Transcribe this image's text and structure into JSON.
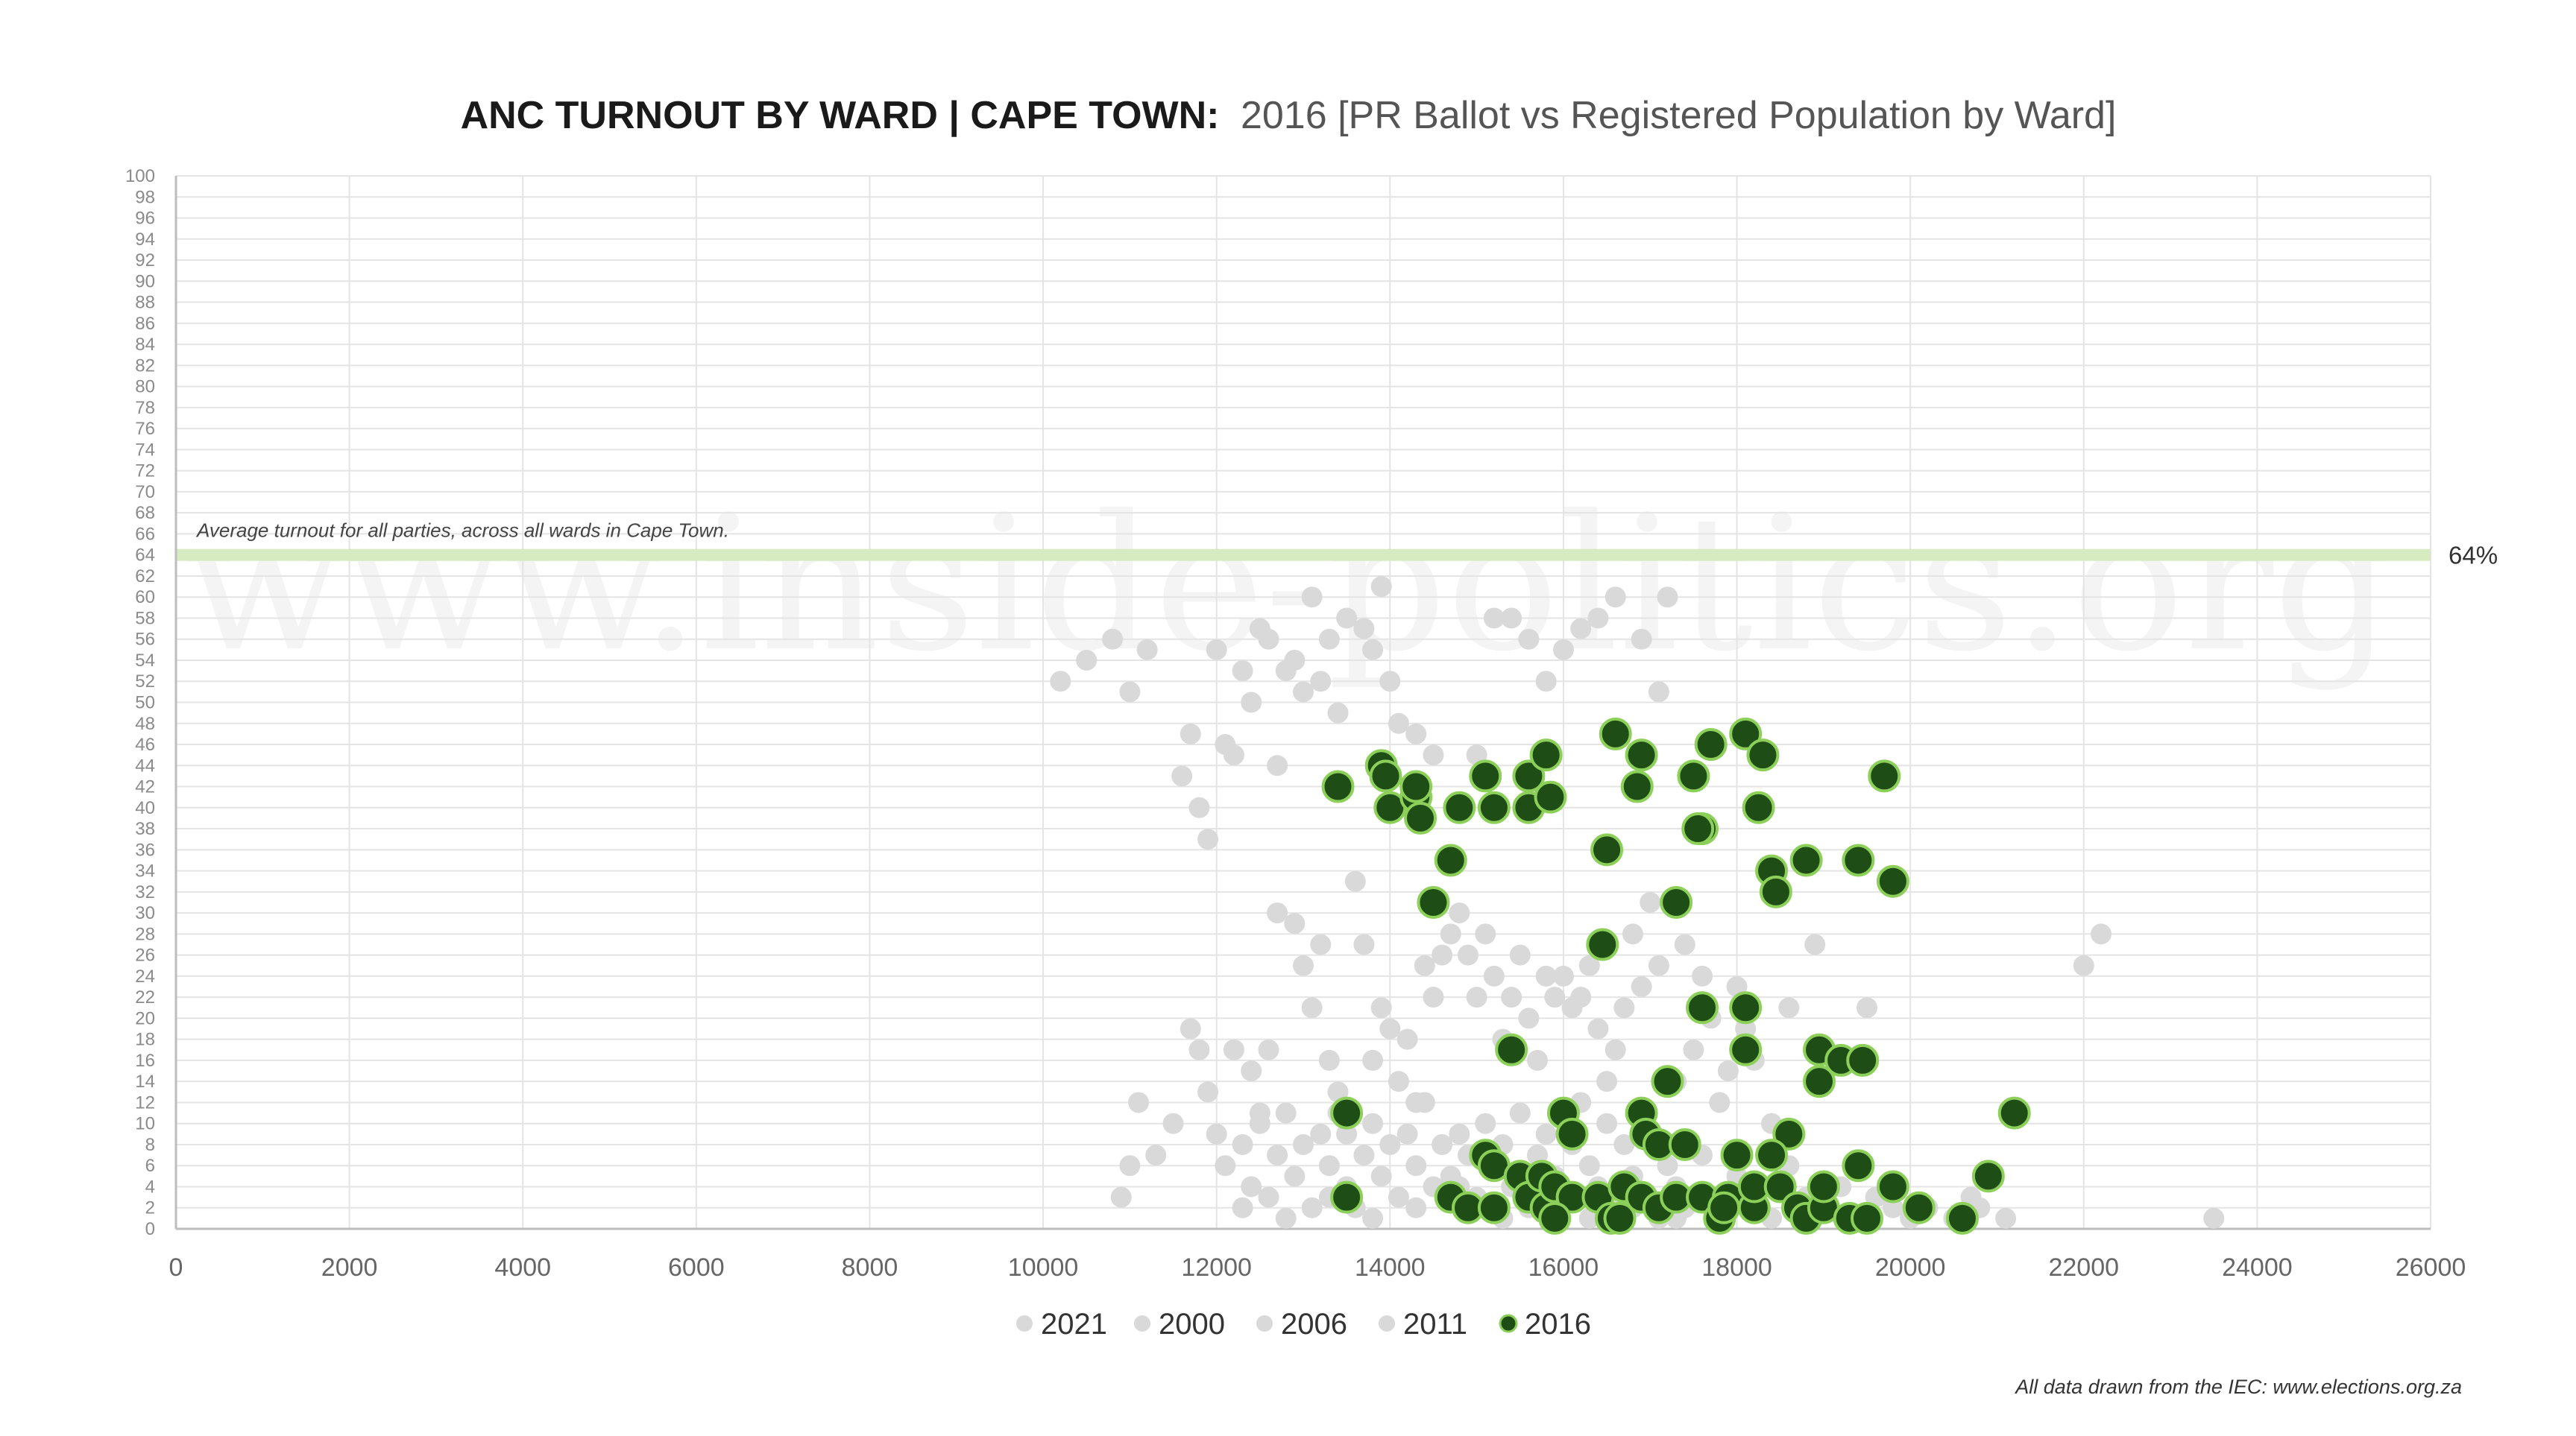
{
  "title": {
    "bold": "ANC TURNOUT BY WARD | CAPE TOWN:",
    "light": "2016 [PR Ballot vs Registered Population by Ward]"
  },
  "watermark": "www.inside-politics.org",
  "source_note": "All data drawn from the IEC: www.elections.org.za",
  "colors": {
    "grid": "#e4e4e4",
    "axis": "#bdbdbd",
    "background_series": "#d9d9d9",
    "highlight_fill": "#1f4d16",
    "highlight_stroke": "#8cd05a",
    "average_band": "#d6ecc0"
  },
  "chart_data": {
    "type": "scatter",
    "xlim": [
      0,
      26000
    ],
    "ylim": [
      0,
      100
    ],
    "x_ticks": [
      "0",
      "2000",
      "4000",
      "6000",
      "8000",
      "10000",
      "12000",
      "14000",
      "16000",
      "18000",
      "20000",
      "22000",
      "24000",
      "26000"
    ],
    "y_ticks": [
      "0",
      "2",
      "4",
      "6",
      "8",
      "10",
      "12",
      "14",
      "16",
      "18",
      "20",
      "22",
      "24",
      "26",
      "28",
      "30",
      "32",
      "34",
      "36",
      "38",
      "40",
      "42",
      "44",
      "46",
      "48",
      "50",
      "52",
      "54",
      "56",
      "58",
      "60",
      "62",
      "64",
      "66",
      "68",
      "70",
      "72",
      "74",
      "76",
      "78",
      "80",
      "82",
      "84",
      "86",
      "88",
      "90",
      "92",
      "94",
      "96",
      "98",
      "100"
    ],
    "reference_line": {
      "y": 64,
      "value_label": "64%",
      "annotation": "Average turnout for all parties, across all wards in Cape Town."
    },
    "legend": [
      "2021",
      "2000",
      "2006",
      "2011",
      "2016"
    ],
    "series": [
      {
        "name": "background",
        "points": [
          [
            10200,
            52
          ],
          [
            10500,
            54
          ],
          [
            10800,
            56
          ],
          [
            11000,
            51
          ],
          [
            11200,
            55
          ],
          [
            10900,
            3
          ],
          [
            11000,
            6
          ],
          [
            11100,
            12
          ],
          [
            11300,
            7
          ],
          [
            11500,
            10
          ],
          [
            11600,
            43
          ],
          [
            11700,
            47
          ],
          [
            11800,
            40
          ],
          [
            11900,
            37
          ],
          [
            12000,
            55
          ],
          [
            12100,
            46
          ],
          [
            12200,
            45
          ],
          [
            12300,
            53
          ],
          [
            12400,
            50
          ],
          [
            12500,
            57
          ],
          [
            12600,
            56
          ],
          [
            12700,
            44
          ],
          [
            12800,
            53
          ],
          [
            12900,
            54
          ],
          [
            13000,
            51
          ],
          [
            13100,
            60
          ],
          [
            13200,
            52
          ],
          [
            13300,
            56
          ],
          [
            13400,
            49
          ],
          [
            13500,
            58
          ],
          [
            13700,
            57
          ],
          [
            13800,
            55
          ],
          [
            13900,
            61
          ],
          [
            14000,
            52
          ],
          [
            14100,
            48
          ],
          [
            14300,
            47
          ],
          [
            14500,
            45
          ],
          [
            15000,
            45
          ],
          [
            15200,
            58
          ],
          [
            15400,
            58
          ],
          [
            15600,
            56
          ],
          [
            15800,
            52
          ],
          [
            16000,
            55
          ],
          [
            16200,
            57
          ],
          [
            16400,
            58
          ],
          [
            16600,
            60
          ],
          [
            16900,
            56
          ],
          [
            17100,
            51
          ],
          [
            17200,
            60
          ],
          [
            11700,
            19
          ],
          [
            11800,
            17
          ],
          [
            11900,
            13
          ],
          [
            12200,
            17
          ],
          [
            12400,
            15
          ],
          [
            12500,
            11
          ],
          [
            12600,
            17
          ],
          [
            12700,
            30
          ],
          [
            12900,
            29
          ],
          [
            13000,
            25
          ],
          [
            13100,
            21
          ],
          [
            13200,
            27
          ],
          [
            13300,
            16
          ],
          [
            13400,
            13
          ],
          [
            13500,
            9
          ],
          [
            13600,
            33
          ],
          [
            13700,
            27
          ],
          [
            13800,
            16
          ],
          [
            13900,
            21
          ],
          [
            14000,
            19
          ],
          [
            14100,
            14
          ],
          [
            14200,
            18
          ],
          [
            14300,
            12
          ],
          [
            14400,
            25
          ],
          [
            14500,
            22
          ],
          [
            14600,
            26
          ],
          [
            14700,
            28
          ],
          [
            14800,
            30
          ],
          [
            14900,
            26
          ],
          [
            15000,
            22
          ],
          [
            15100,
            28
          ],
          [
            15200,
            24
          ],
          [
            15300,
            18
          ],
          [
            15400,
            22
          ],
          [
            15500,
            26
          ],
          [
            15600,
            20
          ],
          [
            15700,
            16
          ],
          [
            15800,
            24
          ],
          [
            15900,
            22
          ],
          [
            16000,
            24
          ],
          [
            16100,
            21
          ],
          [
            16200,
            22
          ],
          [
            16300,
            25
          ],
          [
            16400,
            19
          ],
          [
            16500,
            14
          ],
          [
            16600,
            17
          ],
          [
            16700,
            21
          ],
          [
            16800,
            28
          ],
          [
            16900,
            23
          ],
          [
            17000,
            31
          ],
          [
            17100,
            25
          ],
          [
            17300,
            14
          ],
          [
            17400,
            27
          ],
          [
            17500,
            17
          ],
          [
            17600,
            24
          ],
          [
            17700,
            20
          ],
          [
            17800,
            12
          ],
          [
            17900,
            15
          ],
          [
            18000,
            23
          ],
          [
            18100,
            19
          ],
          [
            18200,
            16
          ],
          [
            18400,
            10
          ],
          [
            18600,
            21
          ],
          [
            18900,
            27
          ],
          [
            19500,
            21
          ],
          [
            22000,
            25
          ],
          [
            22200,
            28
          ],
          [
            23500,
            1
          ],
          [
            20800,
            2
          ],
          [
            21100,
            1
          ],
          [
            12000,
            9
          ],
          [
            12100,
            6
          ],
          [
            12300,
            8
          ],
          [
            12400,
            4
          ],
          [
            12500,
            10
          ],
          [
            12600,
            3
          ],
          [
            12700,
            7
          ],
          [
            12800,
            11
          ],
          [
            12900,
            5
          ],
          [
            13000,
            8
          ],
          [
            13100,
            2
          ],
          [
            13200,
            9
          ],
          [
            13300,
            6
          ],
          [
            13400,
            11
          ],
          [
            13500,
            4
          ],
          [
            13600,
            2
          ],
          [
            13700,
            7
          ],
          [
            13800,
            10
          ],
          [
            13900,
            5
          ],
          [
            14000,
            8
          ],
          [
            14100,
            3
          ],
          [
            14200,
            9
          ],
          [
            14300,
            6
          ],
          [
            14400,
            12
          ],
          [
            14500,
            4
          ],
          [
            14600,
            8
          ],
          [
            14700,
            5
          ],
          [
            14800,
            9
          ],
          [
            14900,
            7
          ],
          [
            15000,
            3
          ],
          [
            15100,
            10
          ],
          [
            15200,
            6
          ],
          [
            15300,
            8
          ],
          [
            15400,
            4
          ],
          [
            15500,
            11
          ],
          [
            15600,
            2
          ],
          [
            15700,
            7
          ],
          [
            15800,
            9
          ],
          [
            15900,
            5
          ],
          [
            16000,
            3
          ],
          [
            16100,
            8
          ],
          [
            16200,
            12
          ],
          [
            16300,
            6
          ],
          [
            16400,
            4
          ],
          [
            16500,
            10
          ],
          [
            16600,
            2
          ],
          [
            16700,
            8
          ],
          [
            16800,
            5
          ],
          [
            16900,
            3
          ],
          [
            17000,
            9
          ],
          [
            17100,
            1
          ],
          [
            17200,
            6
          ],
          [
            17300,
            4
          ],
          [
            17400,
            2
          ],
          [
            17600,
            7
          ],
          [
            17800,
            3
          ],
          [
            18000,
            5
          ],
          [
            18200,
            2
          ],
          [
            18400,
            1
          ],
          [
            18600,
            6
          ],
          [
            18800,
            3
          ],
          [
            19000,
            2
          ],
          [
            19200,
            4
          ],
          [
            19400,
            1
          ],
          [
            19600,
            3
          ],
          [
            19800,
            2
          ],
          [
            20000,
            1
          ],
          [
            20200,
            2
          ],
          [
            20500,
            1
          ],
          [
            20700,
            3
          ],
          [
            12300,
            2
          ],
          [
            12800,
            1
          ],
          [
            13300,
            3
          ],
          [
            13800,
            1
          ],
          [
            14300,
            2
          ],
          [
            14800,
            4
          ],
          [
            15300,
            1
          ],
          [
            15800,
            3
          ],
          [
            16300,
            1
          ],
          [
            16800,
            2
          ],
          [
            17300,
            1
          ]
        ]
      },
      {
        "name": "2016",
        "points": [
          [
            13400,
            42
          ],
          [
            13900,
            44
          ],
          [
            13950,
            43
          ],
          [
            14000,
            40
          ],
          [
            14300,
            41
          ],
          [
            14300,
            42
          ],
          [
            14350,
            39
          ],
          [
            14800,
            40
          ],
          [
            15100,
            43
          ],
          [
            15200,
            40
          ],
          [
            15600,
            43
          ],
          [
            15600,
            40
          ],
          [
            15800,
            45
          ],
          [
            15850,
            41
          ],
          [
            16600,
            47
          ],
          [
            16900,
            45
          ],
          [
            16850,
            42
          ],
          [
            17500,
            43
          ],
          [
            17700,
            46
          ],
          [
            18100,
            47
          ],
          [
            18300,
            45
          ],
          [
            19700,
            43
          ],
          [
            17600,
            38
          ],
          [
            17550,
            38
          ],
          [
            18250,
            40
          ],
          [
            14700,
            35
          ],
          [
            16500,
            36
          ],
          [
            18400,
            34
          ],
          [
            18450,
            32
          ],
          [
            18800,
            35
          ],
          [
            19400,
            35
          ],
          [
            19800,
            33
          ],
          [
            14500,
            31
          ],
          [
            17300,
            31
          ],
          [
            16450,
            27
          ],
          [
            17600,
            21
          ],
          [
            18100,
            21
          ],
          [
            15400,
            17
          ],
          [
            18100,
            17
          ],
          [
            18950,
            17
          ],
          [
            19200,
            16
          ],
          [
            19450,
            16
          ],
          [
            18950,
            14
          ],
          [
            13500,
            11
          ],
          [
            16000,
            11
          ],
          [
            16900,
            11
          ],
          [
            17200,
            14
          ],
          [
            21200,
            11
          ],
          [
            16100,
            9
          ],
          [
            16950,
            9
          ],
          [
            17100,
            8
          ],
          [
            17400,
            8
          ],
          [
            18600,
            9
          ],
          [
            15100,
            7
          ],
          [
            15200,
            6
          ],
          [
            15500,
            5
          ],
          [
            18000,
            7
          ],
          [
            18400,
            7
          ],
          [
            19400,
            6
          ],
          [
            13500,
            3
          ],
          [
            14700,
            3
          ],
          [
            14900,
            2
          ],
          [
            15200,
            2
          ],
          [
            15600,
            3
          ],
          [
            15750,
            5
          ],
          [
            15800,
            2
          ],
          [
            15900,
            4
          ],
          [
            16100,
            3
          ],
          [
            16400,
            3
          ],
          [
            16550,
            1
          ],
          [
            16700,
            4
          ],
          [
            16900,
            3
          ],
          [
            17100,
            2
          ],
          [
            17300,
            3
          ],
          [
            17600,
            3
          ],
          [
            17800,
            1
          ],
          [
            17900,
            3
          ],
          [
            18200,
            2
          ],
          [
            18200,
            4
          ],
          [
            18500,
            4
          ],
          [
            18700,
            2
          ],
          [
            18800,
            1
          ],
          [
            19000,
            2
          ],
          [
            19000,
            4
          ],
          [
            19300,
            1
          ],
          [
            19500,
            1
          ],
          [
            19800,
            4
          ],
          [
            20100,
            2
          ],
          [
            20600,
            1
          ],
          [
            20900,
            5
          ],
          [
            15900,
            1
          ],
          [
            16650,
            1
          ],
          [
            17850,
            2
          ]
        ]
      }
    ]
  }
}
